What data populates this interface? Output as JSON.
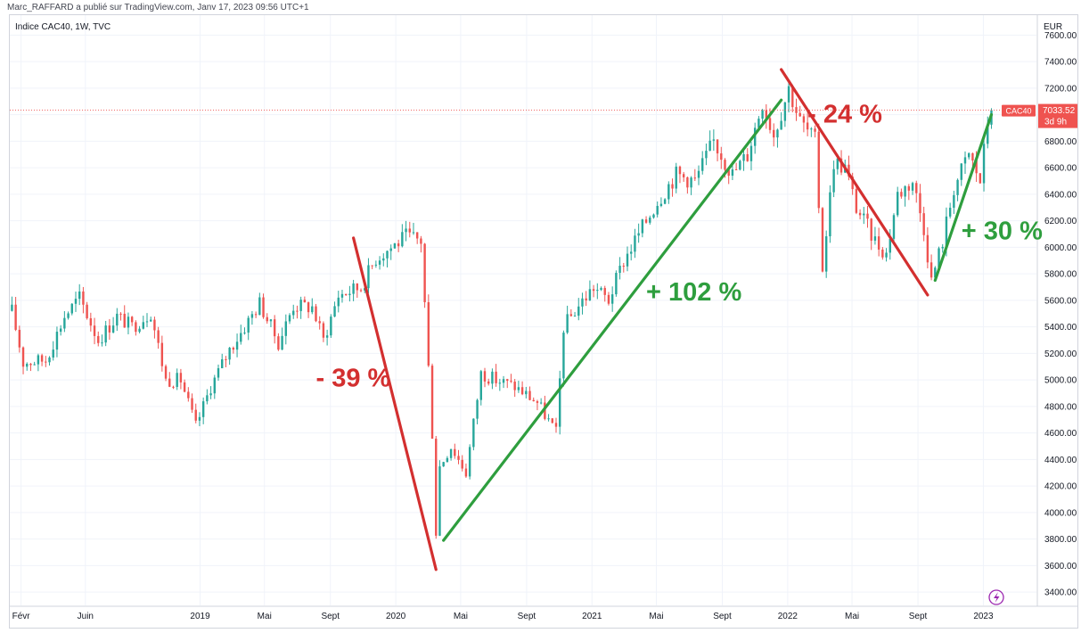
{
  "attribution": "Marc_RAFFARD a publié sur TradingView.com, Janv 17, 2023 09:56 UTC+1",
  "colors": {
    "up": "#26a69a",
    "down": "#ef5350",
    "annot_red": "#d32f2f",
    "annot_green": "#2e9e3e",
    "grid": "#f0f3fa"
  },
  "chart_data": {
    "type": "candlestick",
    "symbol": "CAC40",
    "legend": "Indice CAC40, 1W, TVC",
    "currency": "EUR",
    "ylim": [
      3300,
      7750
    ],
    "y_ticks": [
      "7600.00",
      "7400.00",
      "7200.00",
      "7000.00",
      "6800.00",
      "6600.00",
      "6400.00",
      "6200.00",
      "6000.00",
      "5800.00",
      "5600.00",
      "5400.00",
      "5200.00",
      "5000.00",
      "4800.00",
      "4600.00",
      "4400.00",
      "4200.00",
      "4000.00",
      "3800.00",
      "3600.00",
      "3400.00"
    ],
    "x_ticks": [
      {
        "label": "Févr",
        "date": "2018-02-01"
      },
      {
        "label": "Juin",
        "date": "2018-06-01"
      },
      {
        "label": "2019",
        "date": "2019-01-01"
      },
      {
        "label": "Mai",
        "date": "2019-05-01"
      },
      {
        "label": "Sept",
        "date": "2019-09-01"
      },
      {
        "label": "2020",
        "date": "2020-01-01"
      },
      {
        "label": "Mai",
        "date": "2020-05-01"
      },
      {
        "label": "Sept",
        "date": "2020-09-01"
      },
      {
        "label": "2021",
        "date": "2021-01-01"
      },
      {
        "label": "Mai",
        "date": "2021-05-01"
      },
      {
        "label": "Sept",
        "date": "2021-09-01"
      },
      {
        "label": "2022",
        "date": "2022-01-01"
      },
      {
        "label": "Mai",
        "date": "2022-05-01"
      },
      {
        "label": "Sept",
        "date": "2022-09-01"
      },
      {
        "label": "2023",
        "date": "2023-01-01"
      }
    ],
    "x_range": [
      "2018-01-11",
      "2023-04-10"
    ],
    "price_anchors": [
      [
        "2018-01-15",
        5520
      ],
      [
        "2018-02-05",
        5130
      ],
      [
        "2018-03-19",
        5150
      ],
      [
        "2018-04-23",
        5480
      ],
      [
        "2018-05-21",
        5620
      ],
      [
        "2018-06-25",
        5300
      ],
      [
        "2018-07-30",
        5480
      ],
      [
        "2018-08-27",
        5400
      ],
      [
        "2018-10-01",
        5510
      ],
      [
        "2018-10-29",
        5000
      ],
      [
        "2018-11-26",
        5000
      ],
      [
        "2018-12-24",
        4650
      ],
      [
        "2019-01-21",
        4950
      ],
      [
        "2019-02-25",
        5230
      ],
      [
        "2019-03-25",
        5400
      ],
      [
        "2019-04-22",
        5580
      ],
      [
        "2019-05-27",
        5280
      ],
      [
        "2019-06-24",
        5560
      ],
      [
        "2019-07-29",
        5550
      ],
      [
        "2019-08-19",
        5300
      ],
      [
        "2019-09-16",
        5640
      ],
      [
        "2019-10-28",
        5700
      ],
      [
        "2019-11-25",
        5920
      ],
      [
        "2019-12-23",
        6000
      ],
      [
        "2020-01-20",
        6080
      ],
      [
        "2020-02-17",
        6050
      ],
      [
        "2020-02-24",
        5580
      ],
      [
        "2020-03-09",
        4600
      ],
      [
        "2020-03-16",
        3850
      ],
      [
        "2020-03-23",
        4350
      ],
      [
        "2020-04-13",
        4500
      ],
      [
        "2020-05-11",
        4300
      ],
      [
        "2020-06-08",
        5050
      ],
      [
        "2020-07-06",
        5000
      ],
      [
        "2020-08-10",
        4950
      ],
      [
        "2020-09-21",
        4830
      ],
      [
        "2020-10-26",
        4600
      ],
      [
        "2020-11-09",
        5400
      ],
      [
        "2020-12-07",
        5560
      ],
      [
        "2021-01-04",
        5700
      ],
      [
        "2021-02-01",
        5600
      ],
      [
        "2021-03-01",
        5900
      ],
      [
        "2021-04-05",
        6150
      ],
      [
        "2021-05-03",
        6350
      ],
      [
        "2021-06-07",
        6550
      ],
      [
        "2021-07-12",
        6500
      ],
      [
        "2021-08-16",
        6800
      ],
      [
        "2021-09-20",
        6550
      ],
      [
        "2021-10-18",
        6700
      ],
      [
        "2021-11-15",
        7100
      ],
      [
        "2021-12-06",
        6850
      ],
      [
        "2022-01-03",
        7200
      ],
      [
        "2022-01-24",
        6950
      ],
      [
        "2022-02-21",
        6800
      ],
      [
        "2022-03-07",
        5850
      ],
      [
        "2022-03-28",
        6650
      ],
      [
        "2022-04-18",
        6600
      ],
      [
        "2022-05-09",
        6300
      ],
      [
        "2022-06-13",
        6050
      ],
      [
        "2022-07-04",
        5950
      ],
      [
        "2022-07-25",
        6400
      ],
      [
        "2022-08-22",
        6500
      ],
      [
        "2022-09-12",
        6150
      ],
      [
        "2022-09-26",
        5750
      ],
      [
        "2022-10-17",
        6050
      ],
      [
        "2022-11-07",
        6450
      ],
      [
        "2022-12-05",
        6700
      ],
      [
        "2022-12-26",
        6500
      ],
      [
        "2023-01-09",
        6950
      ],
      [
        "2023-01-16",
        7033.52
      ]
    ],
    "last_price_label": {
      "symbol": "CAC40",
      "price": "7033.52",
      "countdown": "3d 9h"
    },
    "trend_lines": [
      {
        "color": "red",
        "from": [
          "2019-10-14",
          6070
        ],
        "to": [
          "2020-03-16",
          3570
        ]
      },
      {
        "color": "green",
        "from": [
          "2020-03-30",
          3790
        ],
        "to": [
          "2021-12-20",
          7110
        ]
      },
      {
        "color": "red",
        "from": [
          "2021-12-20",
          7340
        ],
        "to": [
          "2022-09-19",
          5640
        ]
      },
      {
        "color": "green",
        "from": [
          "2022-10-03",
          5750
        ],
        "to": [
          "2023-01-16",
          7000
        ]
      }
    ],
    "annotations": [
      {
        "text": "- 39 %",
        "color": "red",
        "at": [
          "2019-08-05",
          4950
        ]
      },
      {
        "text": "+ 102 %",
        "color": "green",
        "at": [
          "2021-04-12",
          5600
        ]
      },
      {
        "text": "- 24 %",
        "color": "red",
        "at": [
          "2022-02-07",
          6940
        ]
      },
      {
        "text": "+ 30 %",
        "color": "green",
        "at": [
          "2022-11-21",
          6060
        ]
      }
    ]
  }
}
